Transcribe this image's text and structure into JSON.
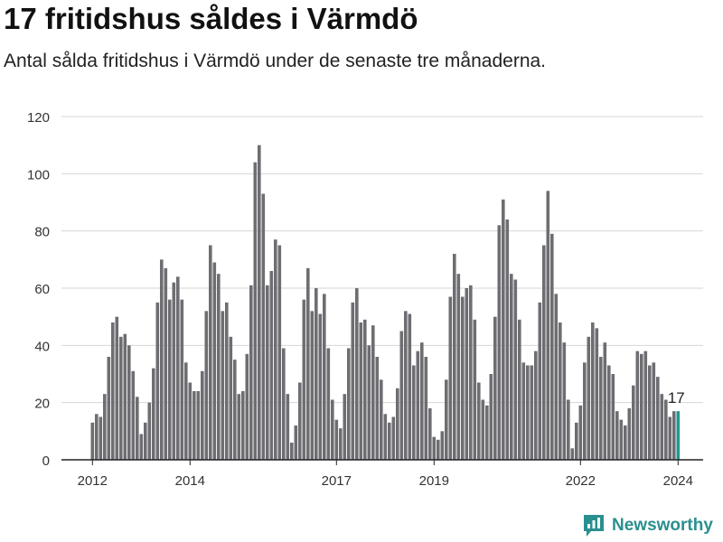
{
  "title": "17 fritidshus såldes i Värmdö",
  "subtitle": "Antal sålda fritidshus i Värmdö under de senaste tre månaderna.",
  "brand": {
    "name": "Newsworthy",
    "icon": "newsworthy-logo-icon",
    "color": "#2a8f8f"
  },
  "chart_data": {
    "type": "bar",
    "ylim": [
      0,
      120
    ],
    "yticks": [
      0,
      20,
      40,
      60,
      80,
      100,
      120
    ],
    "xtick_labels": [
      {
        "label": "2012",
        "index": 0
      },
      {
        "label": "2014",
        "index": 24
      },
      {
        "label": "2017",
        "index": 60
      },
      {
        "label": "2019",
        "index": 84
      },
      {
        "label": "2022",
        "index": 120
      },
      {
        "label": "2024",
        "index": 144
      }
    ],
    "bar_color": "#6e6d72",
    "highlight_color": "#26968f",
    "highlight_label": "17",
    "values": [
      13,
      16,
      15,
      23,
      36,
      48,
      50,
      43,
      44,
      40,
      31,
      22,
      9,
      13,
      20,
      32,
      55,
      70,
      67,
      56,
      62,
      64,
      56,
      34,
      27,
      24,
      24,
      31,
      52,
      75,
      69,
      65,
      52,
      55,
      43,
      35,
      23,
      24,
      37,
      61,
      104,
      110,
      93,
      61,
      66,
      77,
      75,
      39,
      23,
      6,
      12,
      27,
      56,
      67,
      52,
      60,
      51,
      58,
      39,
      21,
      14,
      11,
      23,
      39,
      55,
      60,
      48,
      49,
      40,
      47,
      36,
      28,
      16,
      13,
      15,
      25,
      45,
      52,
      51,
      33,
      38,
      41,
      36,
      18,
      8,
      7,
      10,
      28,
      57,
      72,
      65,
      57,
      60,
      61,
      49,
      27,
      21,
      19,
      30,
      50,
      82,
      91,
      84,
      65,
      63,
      49,
      34,
      33,
      33,
      38,
      55,
      75,
      94,
      79,
      58,
      48,
      41,
      21,
      4,
      13,
      19,
      34,
      43,
      48,
      46,
      36,
      41,
      33,
      30,
      17,
      14,
      12,
      18,
      26,
      38,
      37,
      38,
      33,
      34,
      29,
      23,
      21,
      15,
      17,
      17
    ]
  }
}
